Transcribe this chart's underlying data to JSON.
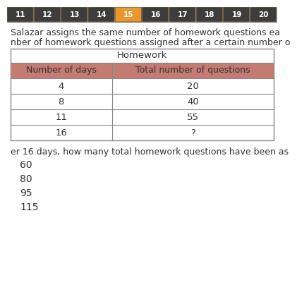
{
  "nav_numbers": [
    "11",
    "12",
    "13",
    "14",
    "15",
    "16",
    "17",
    "18",
    "19",
    "20"
  ],
  "nav_active": "15",
  "nav_bg": "#3d3d3d",
  "nav_active_bg": "#e8962e",
  "nav_border": "#7a6040",
  "nav_text_color": "#ffffff",
  "paragraph_text1": "Salazar assigns the same number of homework questions ea",
  "paragraph_text2": "nber of homework questions assigned after a certain number o",
  "table_title": "Homework",
  "col1_header": "Number of days",
  "col2_header": "Total number of questions",
  "header_bg": "#c47b72",
  "table_border": "#888888",
  "rows": [
    [
      "4",
      "20"
    ],
    [
      "8",
      "40"
    ],
    [
      "11",
      "55"
    ],
    [
      "16",
      "?"
    ]
  ],
  "question_text": "er 16 days, how many total homework questions have been as",
  "choices": [
    "60",
    "80",
    "95",
    "115"
  ],
  "bg_color": "#ffffff",
  "text_color": "#333333",
  "light_gray": "#c8c8c8"
}
